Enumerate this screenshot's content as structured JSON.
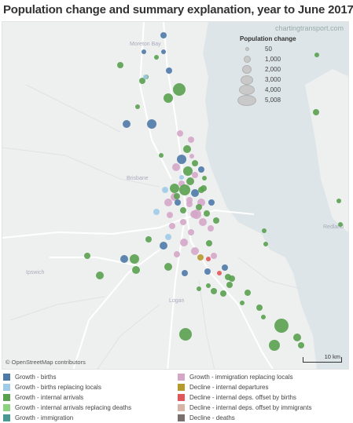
{
  "title": "Population change and summary explanation, year to June 2017",
  "watermark": "chartingtransport.com",
  "attribution": "© OpenStreetMap contributors",
  "scale_label": "10 km",
  "places": {
    "p1": "Brisbane",
    "p2": "Ipswich",
    "p3": "Logan",
    "p4": "Redland",
    "p5": "Moreton Bay"
  },
  "size_legend": {
    "title": "Population change",
    "items": [
      {
        "label": "50",
        "value": 50
      },
      {
        "label": "1,000",
        "value": 1000
      },
      {
        "label": "2,000",
        "value": 2000
      },
      {
        "label": "3,000",
        "value": 3000
      },
      {
        "label": "4,000",
        "value": 4000
      },
      {
        "label": "5,008",
        "value": 5008
      }
    ]
  },
  "legend": [
    {
      "label": "Growth - births",
      "color": "#4e79a7"
    },
    {
      "label": "Growth - births replacing locals",
      "color": "#a0cbe8"
    },
    {
      "label": "Growth - internal arrivals",
      "color": "#59a14f"
    },
    {
      "label": "Growth - internal arrivals replacing deaths",
      "color": "#8cd17d"
    },
    {
      "label": "Growth - immigration",
      "color": "#499894"
    },
    {
      "label": "Growth - immigration replacing locals",
      "color": "#d4a6c8"
    },
    {
      "label": "Decline - internal departures",
      "color": "#b6992d"
    },
    {
      "label": "Decline - internal deps. offset by births",
      "color": "#e15759"
    },
    {
      "label": "Decline - internal deps. offset by immigrants",
      "color": "#d7b5a6"
    },
    {
      "label": "Decline - deaths",
      "color": "#79706e"
    }
  ]
}
